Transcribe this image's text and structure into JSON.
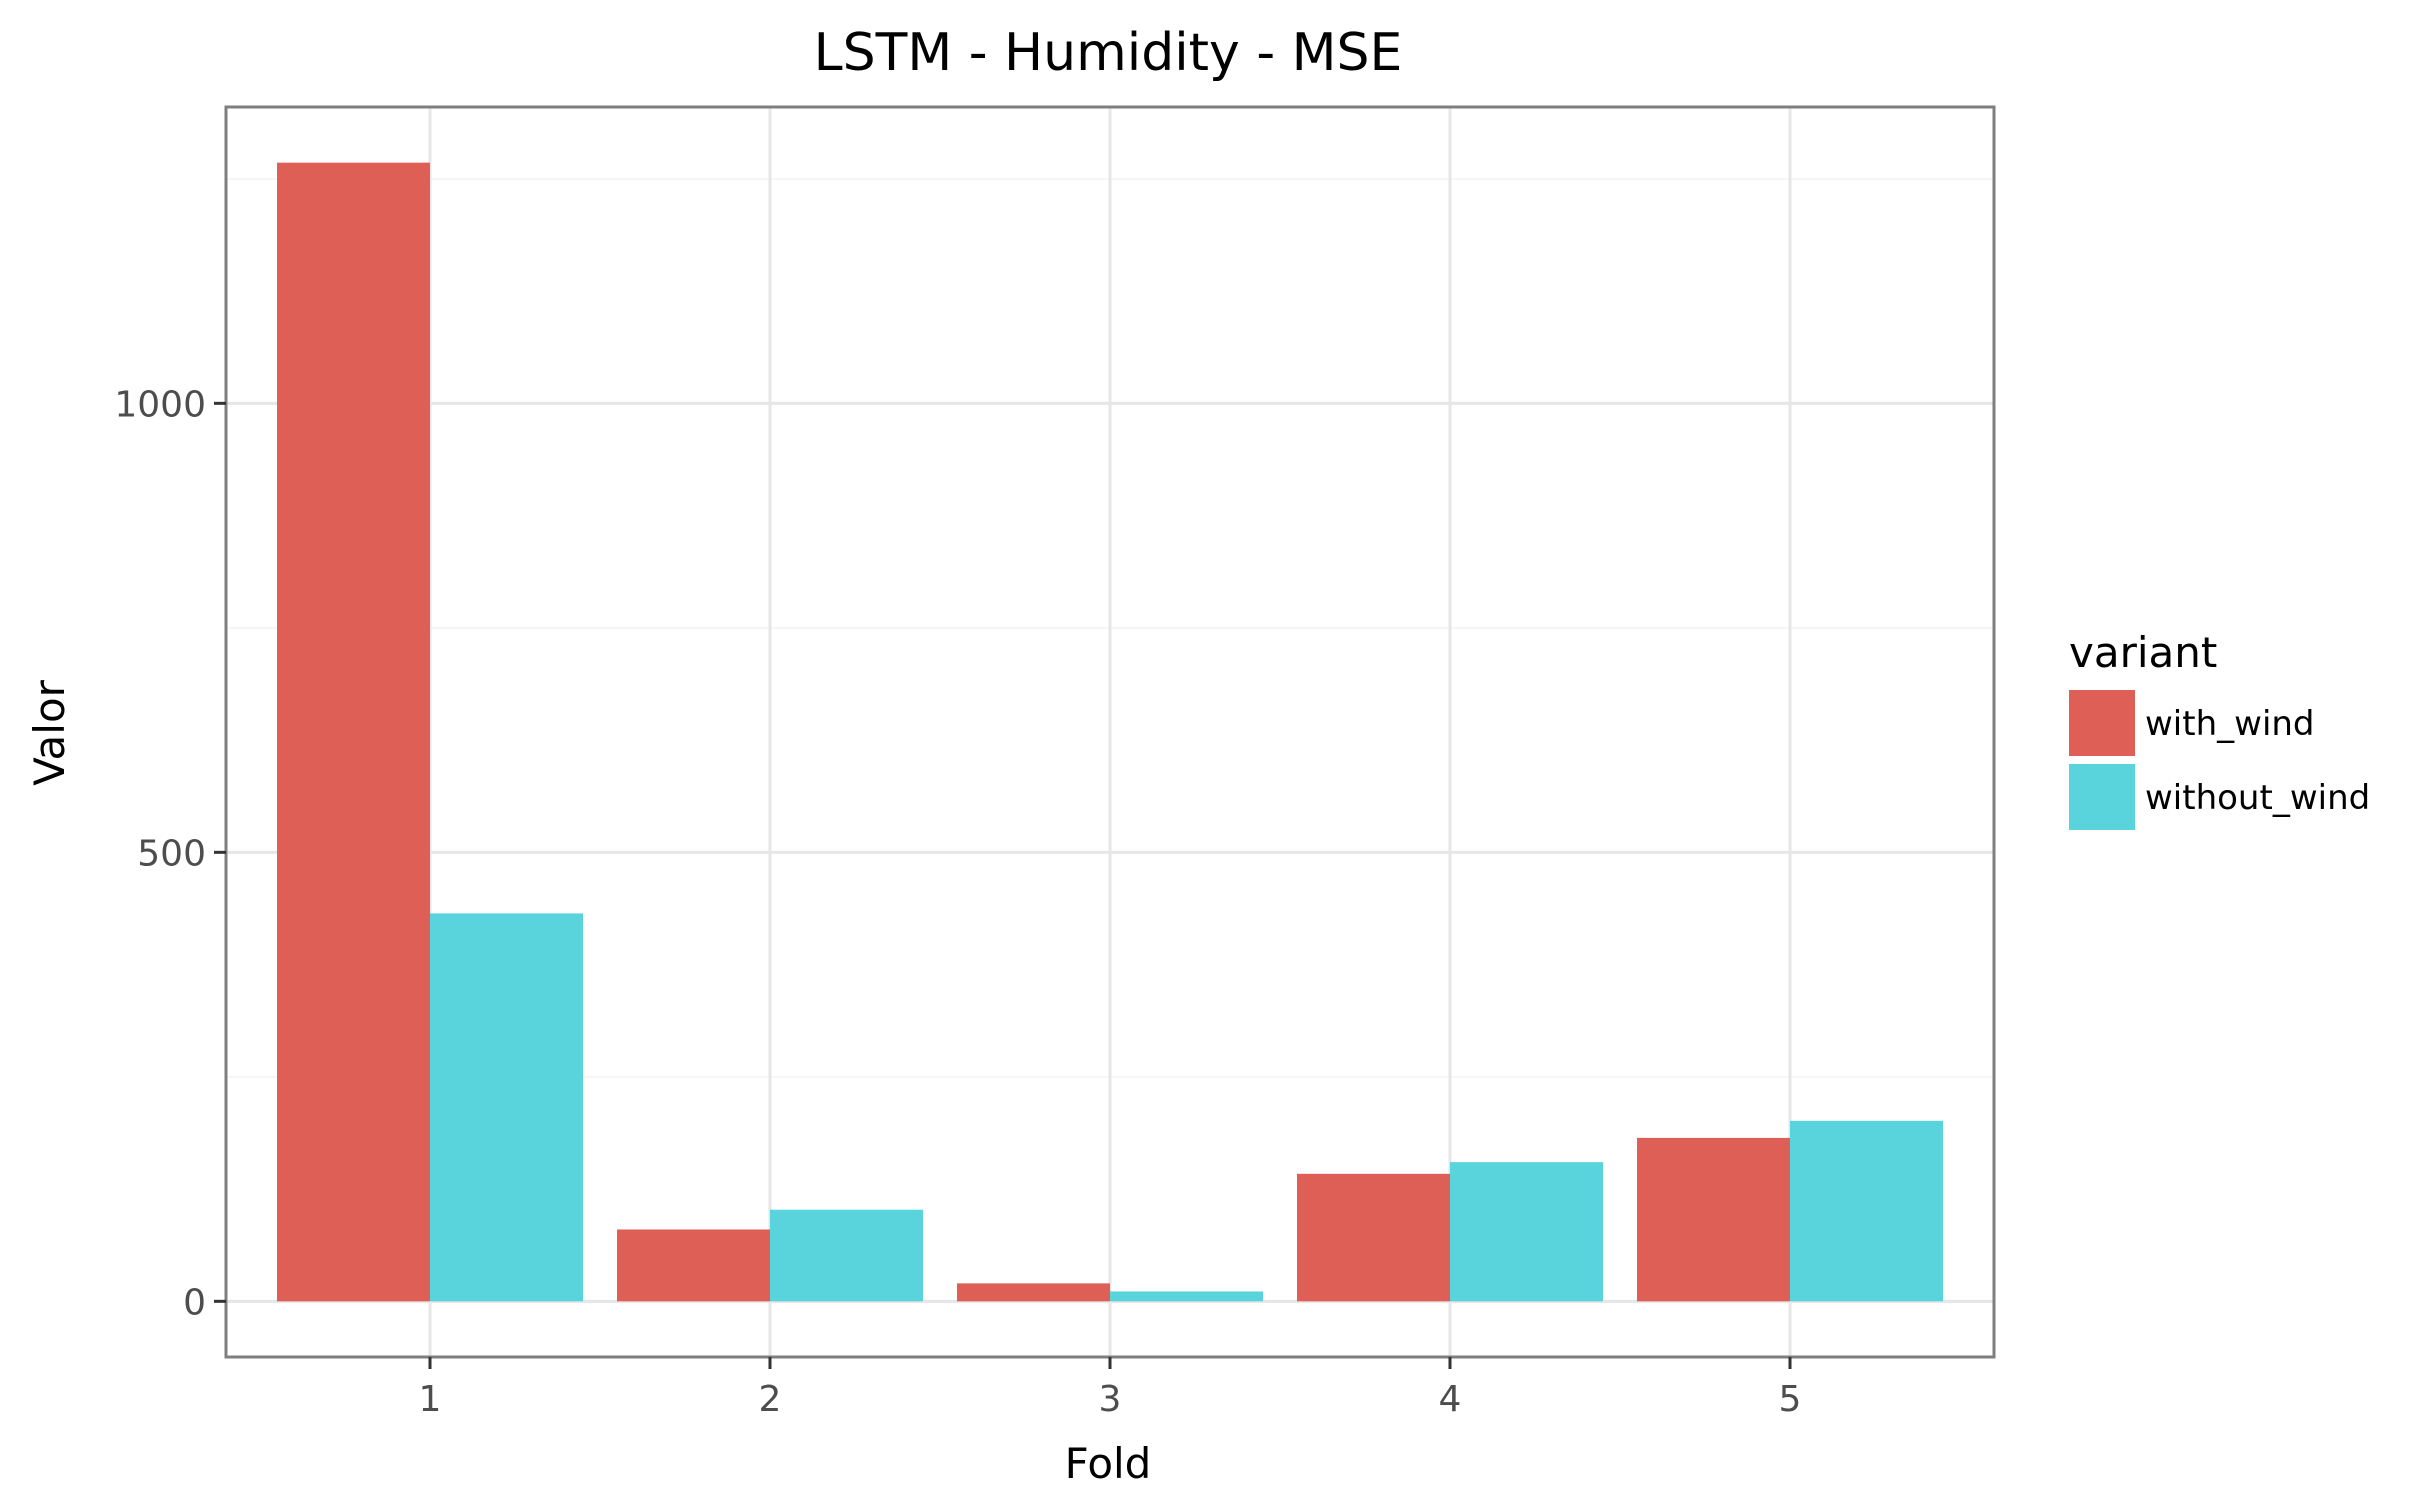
{
  "chart_data": {
    "type": "bar",
    "title": "LSTM - Humidity - MSE",
    "xlabel": "Fold",
    "ylabel": "Valor",
    "categories": [
      "1",
      "2",
      "3",
      "4",
      "5"
    ],
    "series": [
      {
        "name": "with_wind",
        "color": "#dd5f56",
        "values": [
          1268,
          80,
          20,
          142,
          182
        ]
      },
      {
        "name": "without_wind",
        "color": "#59d3dc",
        "values": [
          432,
          102,
          11,
          155,
          201
        ]
      }
    ],
    "ylim": [
      -62,
      1330
    ],
    "yticks": [
      0,
      500,
      1000
    ],
    "ytick_labels": [
      "0",
      "500",
      "1000"
    ],
    "grid": true,
    "legend": {
      "title": "variant",
      "position": "right"
    }
  }
}
